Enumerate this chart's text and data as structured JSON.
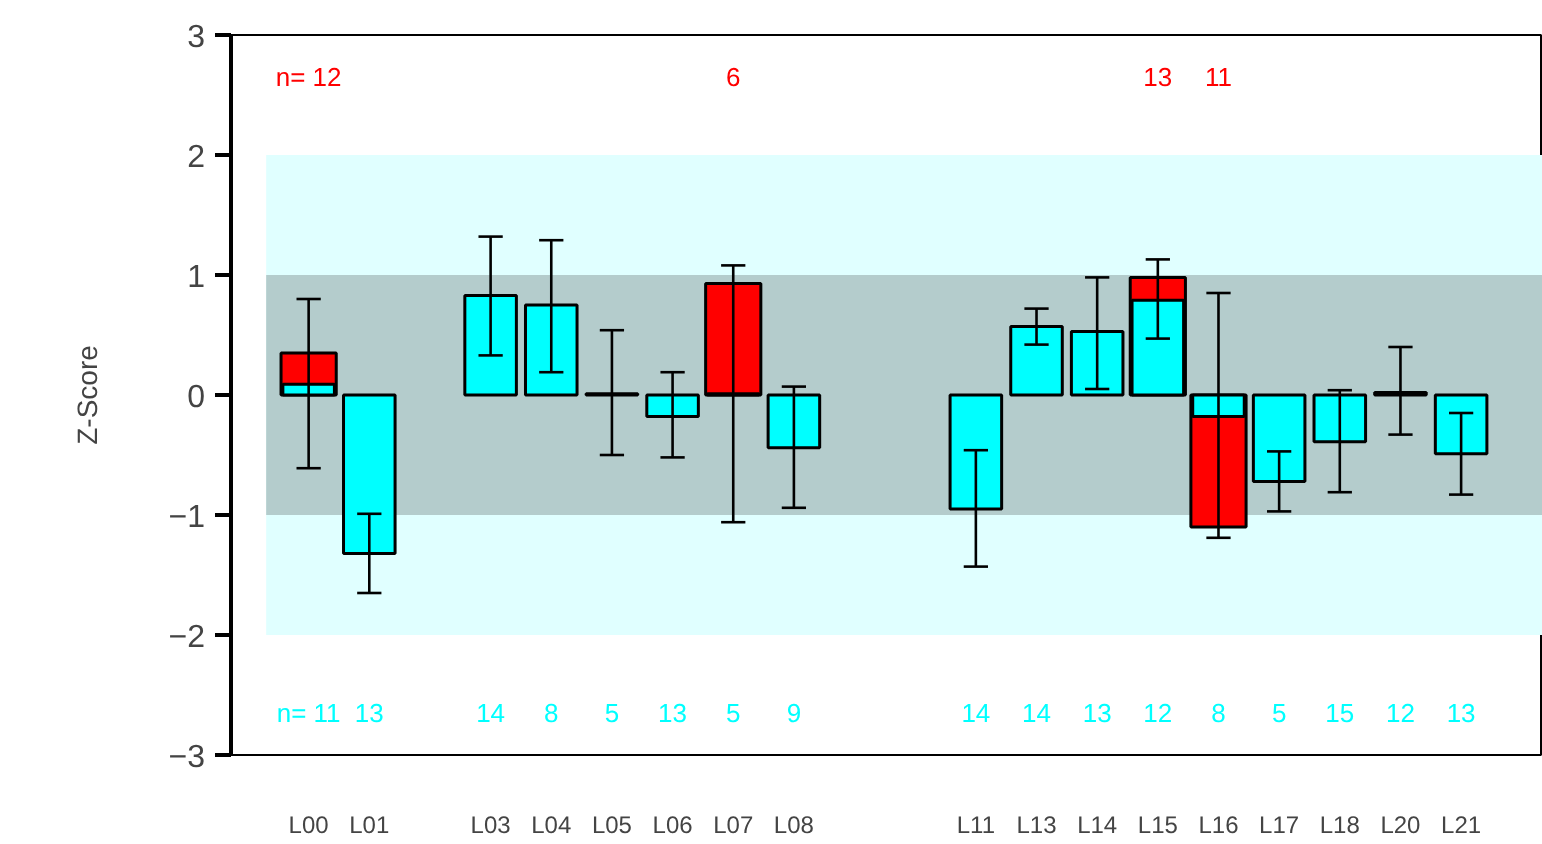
{
  "chart_data": {
    "type": "bar",
    "ylabel": "Z-Score",
    "categories": [
      "L00",
      "L01",
      null,
      "L03",
      "L04",
      "L05",
      "L06",
      "L07",
      "L08",
      null,
      null,
      "L11",
      "L13",
      "L14",
      "L15",
      "L16",
      "L17",
      "L18",
      "L20",
      "L21"
    ],
    "series": [
      {
        "color": "#ff0000",
        "values": [
          0.35,
          null,
          null,
          null,
          null,
          null,
          null,
          0.93,
          null,
          null,
          null,
          null,
          null,
          null,
          0.98,
          -1.1,
          null,
          null,
          null,
          null
        ]
      },
      {
        "color": "#00ffff",
        "values": [
          0.09,
          -1.32,
          null,
          0.83,
          0.75,
          0.01,
          -0.18,
          0.01,
          -0.44,
          null,
          null,
          -0.95,
          0.57,
          0.53,
          0.79,
          -0.18,
          -0.72,
          -0.39,
          0.02,
          -0.49
        ],
        "errors": [
          [
            -0.61,
            0.8
          ],
          [
            -1.65,
            -0.99
          ],
          null,
          [
            0.33,
            1.32
          ],
          [
            0.19,
            1.29
          ],
          [
            -0.5,
            0.54
          ],
          [
            -0.52,
            0.19
          ],
          [
            -1.06,
            1.08
          ],
          [
            -0.94,
            0.07
          ],
          null,
          null,
          [
            -1.43,
            -0.46
          ],
          [
            0.42,
            0.72
          ],
          [
            0.05,
            0.98
          ],
          [
            0.47,
            1.13
          ],
          [
            -1.19,
            0.85
          ],
          [
            -0.97,
            -0.47
          ],
          [
            -0.81,
            0.04
          ],
          [
            -0.33,
            0.4
          ],
          [
            -0.83,
            -0.15
          ]
        ]
      }
    ],
    "ylim": [
      -3,
      3
    ],
    "yticks": [
      -3,
      -2,
      -1,
      0,
      1,
      2,
      3
    ],
    "grid": false,
    "bands": [
      {
        "axis": "y",
        "from": -2,
        "to": 2,
        "color": "#e0ffff"
      },
      {
        "axis": "y",
        "from": -1,
        "to": 1,
        "color": "#b4cccc"
      }
    ],
    "annotations": [
      "n= 12",
      "6",
      "13",
      "11",
      "n= 11",
      "13",
      "14",
      "8",
      "5",
      "13",
      "5",
      "9",
      "14",
      "14",
      "13",
      "12",
      "8",
      "5",
      "15",
      "12",
      "13"
    ]
  }
}
